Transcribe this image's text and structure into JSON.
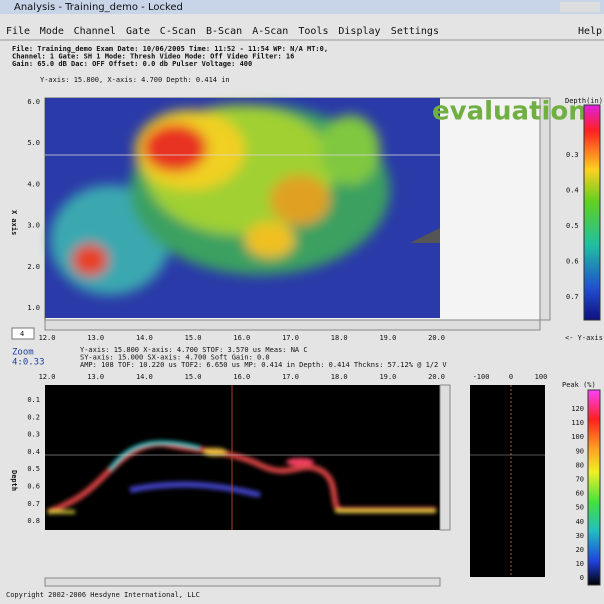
{
  "window": {
    "title": "Analysis - Training_demo - Locked"
  },
  "menu": [
    "File",
    "Mode",
    "Channel",
    "Gate",
    "C-Scan",
    "B-Scan",
    "A-Scan",
    "Tools",
    "Display",
    "Settings"
  ],
  "help": "Help",
  "info": [
    "File: Training_demo   Exam Date: 10/06/2005   Time: 11:52 - 11:54   WP: N/A   MT:0,",
    "Channel: 1   Gate: SH 1   Mode: Thresh   Video Mode: Off   Video Filter: 16",
    "Gain: 65.0 dB   Dac: OFF   Offset: 0.0 db   Pulser Voltage: 400"
  ],
  "cursor": "Y-axis:    15.800, X-axis:     4.700   Depth:   0.414 in",
  "cscan": {
    "ylabel": "X axis",
    "yticks": [
      "6.0",
      "5.0",
      "4.0",
      "3.0",
      "2.0",
      "1.0"
    ],
    "xticks": [
      "12.0",
      "13.0",
      "14.0",
      "15.0",
      "16.0",
      "17.0",
      "18.0",
      "19.0",
      "20.0"
    ],
    "overlay": "evaluation",
    "colorbar_title": "Depth(in)",
    "colorbar_ticks": [
      "0.3",
      "0.4",
      "0.5",
      "0.6",
      "0.7"
    ],
    "colorbar_foot": "<- Y-axis"
  },
  "zoom": {
    "level": "4",
    "label": "Zoom",
    "value": "4:0.33"
  },
  "bscan_info": [
    "Y-axis:   15.800   X-axis:     4.700   STOF: 3.570 us   Meas: NA C",
    "SY-axis:  15.000   SX-axis:    4.700   Soft Gain: 0.0",
    "AMP: 108  TOF: 10.220 us   TOF2: 6.650 us   MP: 0.414 in   Depth: 0.414  Thckns: 57.12% @ 1/2 V"
  ],
  "bscan": {
    "ylabel": "Depth",
    "xticks": [
      "12.0",
      "13.0",
      "14.0",
      "15.0",
      "16.0",
      "17.0",
      "18.0",
      "19.0",
      "20.0"
    ],
    "yticks": [
      "0.1",
      "0.2",
      "0.3",
      "0.4",
      "0.5",
      "0.6",
      "0.7",
      "0.8"
    ]
  },
  "ascan": {
    "xticks": [
      "-100",
      "0",
      "100"
    ]
  },
  "peak": {
    "title": "Peak  (%)",
    "ticks": [
      "120",
      "110",
      "100",
      "90",
      "80",
      "70",
      "60",
      "50",
      "40",
      "30",
      "20",
      "10",
      "0"
    ]
  },
  "footer": "Copyright 2002-2006 Hesdyne International, LLC"
}
